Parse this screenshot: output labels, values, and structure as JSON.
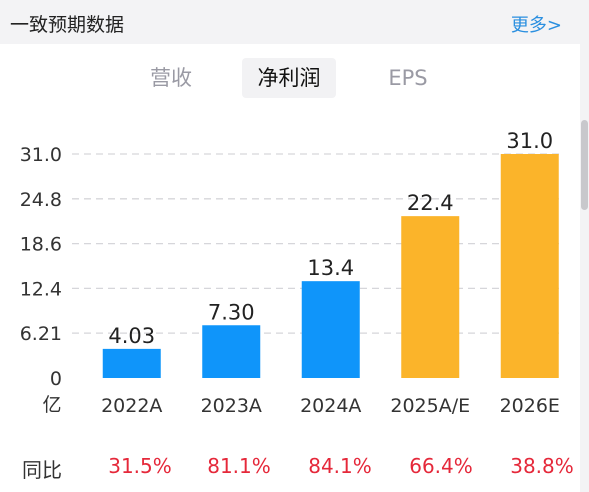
{
  "header": {
    "title": "一致预期数据",
    "more_label": "更多>"
  },
  "tabs": [
    {
      "label": "营收",
      "active": false
    },
    {
      "label": "净利润",
      "active": true
    },
    {
      "label": "EPS",
      "active": false
    }
  ],
  "colors": {
    "actual_bar": "#0f95fa",
    "estimate_bar": "#fbb42a",
    "yoy_text": "#e5283a",
    "link": "#2a8fe0"
  },
  "chart_data": {
    "type": "bar",
    "categories": [
      "2022A",
      "2023A",
      "2024A",
      "2025A/E",
      "2026E"
    ],
    "values": [
      4.03,
      7.3,
      13.4,
      22.4,
      31.0
    ],
    "value_labels": [
      "4.03",
      "7.30",
      "13.4",
      "22.4",
      "31.0"
    ],
    "bar_kinds": [
      "actual",
      "actual",
      "actual",
      "estimate",
      "estimate"
    ],
    "yticks": [
      "0",
      "6.21",
      "12.4",
      "18.6",
      "24.8",
      "31.0"
    ],
    "ytick_values": [
      0,
      6.21,
      12.4,
      18.6,
      24.8,
      31.0
    ],
    "ylim": [
      0,
      31.0
    ],
    "unit": "亿",
    "grid": true
  },
  "yoy": {
    "label": "同比",
    "values": [
      "31.5%",
      "81.1%",
      "84.1%",
      "66.4%",
      "38.8%"
    ]
  }
}
